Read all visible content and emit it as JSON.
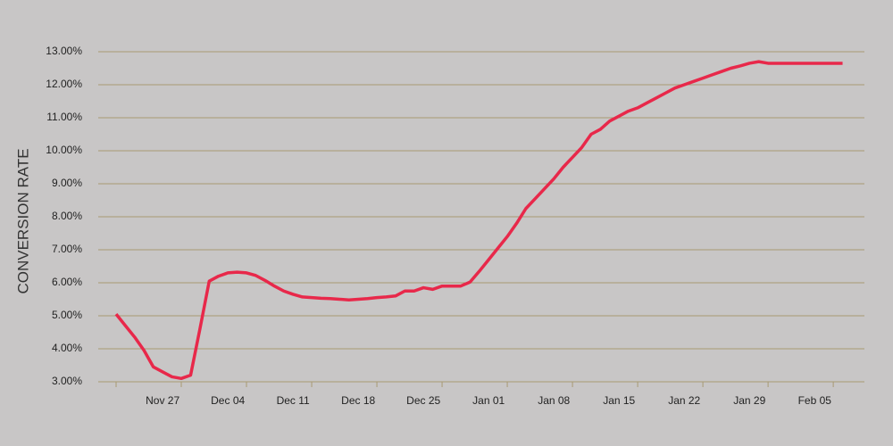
{
  "chart_data": {
    "type": "line",
    "y_label": "CONVERSION RATE",
    "categories": [
      null,
      null,
      null,
      null,
      null,
      "Nov 27",
      null,
      null,
      null,
      null,
      null,
      null,
      "Dec 04",
      null,
      null,
      null,
      null,
      null,
      null,
      "Dec 11",
      null,
      null,
      null,
      null,
      null,
      null,
      "Dec 18",
      null,
      null,
      null,
      null,
      null,
      null,
      "Dec 25",
      null,
      null,
      null,
      null,
      null,
      null,
      "Jan 01",
      null,
      null,
      null,
      null,
      null,
      null,
      "Jan 08",
      null,
      null,
      null,
      null,
      null,
      null,
      "Jan 15",
      null,
      null,
      null,
      null,
      null,
      null,
      "Jan 22",
      null,
      null,
      null,
      null,
      null,
      null,
      "Jan 29",
      null,
      null,
      null,
      null,
      null,
      null,
      "Feb 05",
      null,
      null,
      null
    ],
    "series": [
      {
        "name": "Conversion Rate",
        "color": "#e8284a",
        "values": [
          5.05,
          4.7,
          4.35,
          3.95,
          3.45,
          3.3,
          3.15,
          3.1,
          3.2,
          4.6,
          6.05,
          6.2,
          6.3,
          6.32,
          6.3,
          6.22,
          6.07,
          5.9,
          5.75,
          5.65,
          5.57,
          5.55,
          5.53,
          5.52,
          5.5,
          5.48,
          5.5,
          5.52,
          5.55,
          5.57,
          5.6,
          5.75,
          5.75,
          5.85,
          5.8,
          5.9,
          5.9,
          5.9,
          6.02,
          6.35,
          6.7,
          7.05,
          7.4,
          7.8,
          8.25,
          8.55,
          8.85,
          9.15,
          9.5,
          9.8,
          10.1,
          10.5,
          10.65,
          10.9,
          11.05,
          11.2,
          11.3,
          11.45,
          11.6,
          11.75,
          11.9,
          12.0,
          12.1,
          12.2,
          12.3,
          12.4,
          12.5,
          12.57,
          12.65,
          12.7,
          12.65,
          12.65,
          12.65,
          12.65,
          12.65,
          12.65,
          12.65,
          12.65,
          12.65
        ]
      }
    ],
    "ylim": [
      3,
      13
    ],
    "yticks": [
      {
        "value": 3,
        "label": "3.00%"
      },
      {
        "value": 4,
        "label": "4.00%"
      },
      {
        "value": 5,
        "label": "5.00%"
      },
      {
        "value": 6,
        "label": "6.00%"
      },
      {
        "value": 7,
        "label": "7.00%"
      },
      {
        "value": 8,
        "label": "8.00%"
      },
      {
        "value": 9,
        "label": "9.00%"
      },
      {
        "value": 10,
        "label": "10.00%"
      },
      {
        "value": 11,
        "label": "11.00%"
      },
      {
        "value": 12,
        "label": "12.00%"
      },
      {
        "value": 13,
        "label": "13.00%"
      }
    ],
    "grid": true,
    "grid_color": "#a89a73"
  }
}
